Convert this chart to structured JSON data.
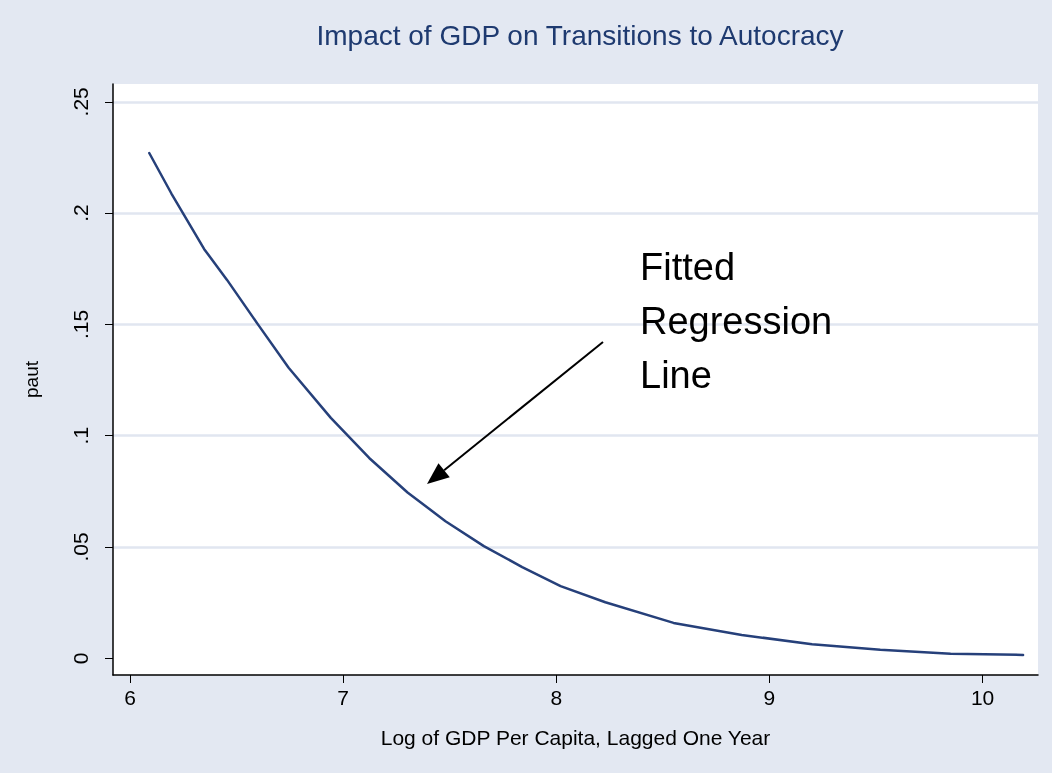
{
  "chart_data": {
    "type": "line",
    "title": "Impact of GDP on Transitions to Autocracy",
    "xlabel": "Log of GDP Per Capita, Lagged One Year",
    "ylabel": "paut",
    "annotations": [
      "Fitted\nRegression\nLine"
    ],
    "series": [
      {
        "color": "#26407a",
        "x": [
          6.09,
          6.194,
          6.348,
          6.455,
          6.6,
          6.744,
          6.942,
          7.122,
          7.302,
          7.48,
          7.66,
          7.84,
          8.02,
          8.23,
          8.55,
          8.87,
          9.2,
          9.52,
          9.85,
          10.19
        ],
        "values": [
          0.227,
          0.2088,
          0.1838,
          0.17,
          0.15,
          0.1305,
          0.108,
          0.09,
          0.0745,
          0.0616,
          0.0504,
          0.041,
          0.0324,
          0.0252,
          0.0159,
          0.0105,
          0.0063,
          0.0038,
          0.0021,
          0.0015
        ]
      }
    ],
    "xlim": [
      5.92,
      10.26
    ],
    "xticks": [
      6,
      7,
      8,
      9,
      10
    ],
    "ylim": [
      -0.0075,
      0.258
    ],
    "yticks": [
      0,
      {
        "value": 0.05,
        "label": ".05"
      },
      {
        "value": 0.1,
        "label": ".1"
      },
      {
        "value": 0.15,
        "label": ".15"
      },
      {
        "value": 0.2,
        "label": ".2"
      },
      {
        "value": 0.25,
        "label": ".25"
      }
    ],
    "grid": "y",
    "marker": "none",
    "line_style": "solid"
  }
}
